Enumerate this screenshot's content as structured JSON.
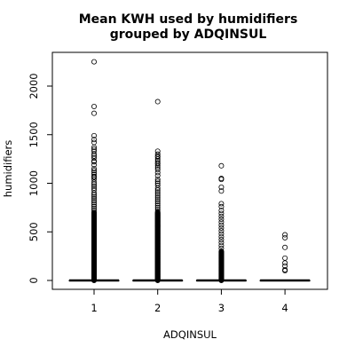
{
  "chart_data": {
    "type": "boxplot",
    "title_line1": "Mean KWH used by humidifiers",
    "title_line2": "grouped by ADQINSUL",
    "xlabel": "ADQINSUL",
    "ylabel": "humidifiers",
    "categories": [
      "1",
      "2",
      "3",
      "4"
    ],
    "ylim": [
      -80,
      2340
    ],
    "yticks": [
      0,
      500,
      1000,
      1500,
      2000
    ],
    "grid": false,
    "groups": [
      {
        "category": "1",
        "box": {
          "min": 0,
          "q1": 0,
          "median": 0,
          "q3": 0,
          "max": 0
        },
        "dense_outlier_range": [
          0,
          700
        ],
        "outliers": [
          2250,
          1790,
          1720,
          1490,
          1450,
          1420,
          1370,
          1350,
          1330,
          1300,
          1280,
          1260,
          1230,
          1220,
          1190,
          1150,
          1130,
          1110,
          1090,
          1070,
          1060,
          1040,
          1010,
          990,
          970,
          950,
          930,
          900,
          880,
          860,
          840,
          820,
          800,
          780,
          760,
          740,
          720
        ]
      },
      {
        "category": "2",
        "box": {
          "min": 0,
          "q1": 0,
          "median": 0,
          "q3": 0,
          "max": 0
        },
        "dense_outlier_range": [
          0,
          700
        ],
        "outliers": [
          1840,
          1330,
          1300,
          1280,
          1270,
          1250,
          1230,
          1210,
          1200,
          1180,
          1160,
          1140,
          1110,
          1080,
          1040,
          1020,
          1000,
          980,
          950,
          930,
          910,
          890,
          870,
          850,
          830,
          810,
          790,
          770,
          750,
          730,
          710
        ]
      },
      {
        "category": "3",
        "box": {
          "min": 0,
          "q1": 0,
          "median": 0,
          "q3": 0,
          "max": 0
        },
        "dense_outlier_range": [
          0,
          300
        ],
        "outliers": [
          1180,
          1050,
          1040,
          960,
          920,
          790,
          760,
          720,
          690,
          660,
          630,
          600,
          570,
          540,
          510,
          480,
          450,
          420,
          390,
          360,
          330
        ]
      },
      {
        "category": "4",
        "box": {
          "min": 0,
          "q1": 0,
          "median": 0,
          "q3": 0,
          "max": 0
        },
        "dense_outlier_range": [
          0,
          0
        ],
        "outliers": [
          470,
          440,
          340,
          230,
          180,
          150,
          110,
          100
        ]
      }
    ]
  }
}
